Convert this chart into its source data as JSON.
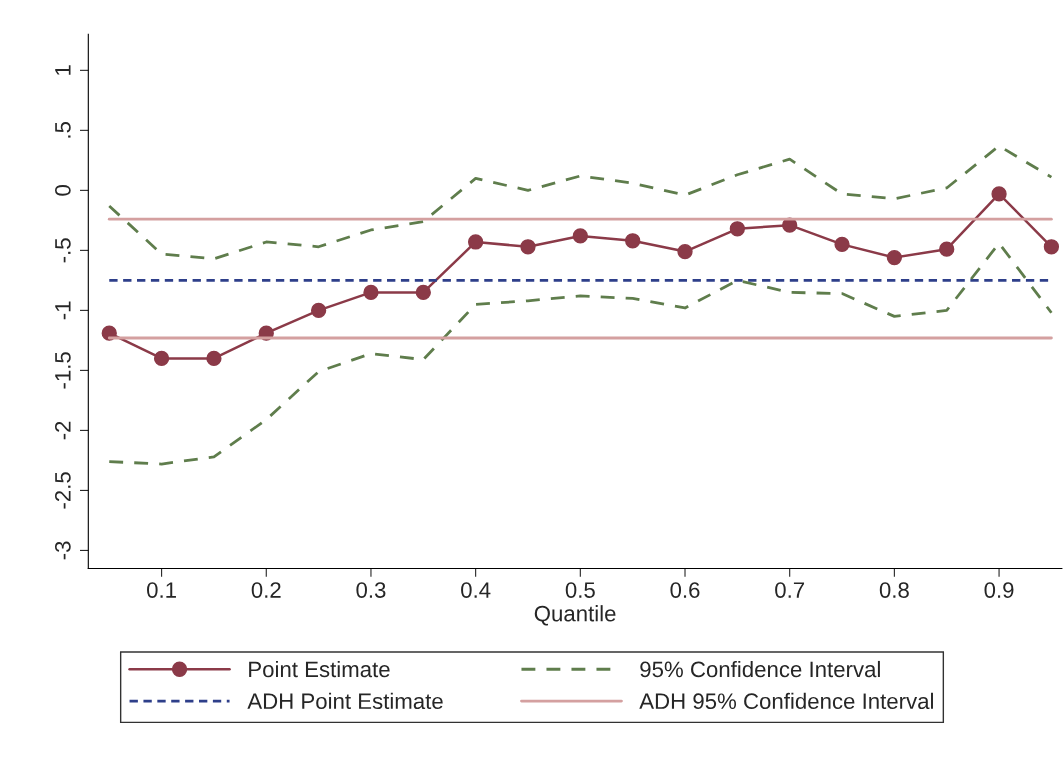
{
  "chart_data": {
    "type": "line",
    "xlabel": "Quantile",
    "x": [
      0.05,
      0.1,
      0.15,
      0.2,
      0.25,
      0.3,
      0.35,
      0.4,
      0.45,
      0.5,
      0.55,
      0.6,
      0.65,
      0.7,
      0.75,
      0.8,
      0.85,
      0.9,
      0.95
    ],
    "series": [
      {
        "name": "Point Estimate",
        "color": "#8b3a48",
        "marker": "circle",
        "line_style": "solid",
        "values": [
          -1.19,
          -1.4,
          -1.4,
          -1.19,
          -1.0,
          -0.85,
          -0.85,
          -0.43,
          -0.47,
          -0.38,
          -0.42,
          -0.51,
          -0.32,
          -0.29,
          -0.45,
          -0.56,
          -0.49,
          -0.03,
          -0.47
        ]
      },
      {
        "name": "95% Confidence Interval",
        "color": "#5f7d4c",
        "marker": "none",
        "line_style": "dashed",
        "values": [
          -0.13,
          -0.53,
          -0.57,
          -0.43,
          -0.47,
          -0.33,
          -0.26,
          0.1,
          0.0,
          0.12,
          0.06,
          -0.04,
          0.13,
          0.26,
          -0.03,
          -0.07,
          0.02,
          0.37,
          0.11
        ]
      },
      {
        "name": "ADH Point Estimate",
        "color": "#2e3f8a",
        "marker": "none",
        "line_style": "dotted",
        "values": [
          -0.75,
          -0.75,
          -0.75,
          -0.75,
          -0.75,
          -0.75,
          -0.75,
          -0.75,
          -0.75,
          -0.75,
          -0.75,
          -0.75,
          -0.75,
          -0.75,
          -0.75,
          -0.75,
          -0.75,
          -0.75,
          -0.75
        ]
      },
      {
        "name": "ADH 95% Confidence Interval",
        "color": "#d4a0a0",
        "marker": "none",
        "line_style": "solid",
        "values": [
          -0.24,
          -0.24,
          -0.24,
          -0.24,
          -0.24,
          -0.24,
          -0.24,
          -0.24,
          -0.24,
          -0.24,
          -0.24,
          -0.24,
          -0.24,
          -0.24,
          -0.24,
          -0.24,
          -0.24,
          -0.24,
          -0.24
        ]
      },
      {
        "color": "#5f7d4c",
        "marker": "none",
        "line_style": "dashed",
        "values": [
          -2.26,
          -2.28,
          -2.22,
          -1.91,
          -1.51,
          -1.36,
          -1.41,
          -0.95,
          -0.92,
          -0.88,
          -0.9,
          -0.98,
          -0.75,
          -0.85,
          -0.86,
          -1.05,
          -1.0,
          -0.44,
          -1.02
        ]
      },
      {
        "color": "#d4a0a0",
        "marker": "none",
        "line_style": "solid",
        "values": [
          -1.23,
          -1.23,
          -1.23,
          -1.23,
          -1.23,
          -1.23,
          -1.23,
          -1.23,
          -1.23,
          -1.23,
          -1.23,
          -1.23,
          -1.23,
          -1.23,
          -1.23,
          -1.23,
          -1.23,
          -1.23,
          -1.23
        ]
      }
    ],
    "xlim": [
      0.03,
      0.96
    ],
    "xticks": [
      0.1,
      0.2,
      0.3,
      0.4,
      0.5,
      0.6,
      0.7,
      0.8,
      0.9
    ],
    "ylim": [
      -3.15,
      1.3
    ],
    "yticks": [
      {
        "value": -3,
        "label": "-3"
      },
      {
        "value": -2.5,
        "label": "-2.5"
      },
      {
        "value": -2,
        "label": "-2"
      },
      {
        "value": -1.5,
        "label": "-1.5"
      },
      {
        "value": -1,
        "label": "-1"
      },
      {
        "value": -0.5,
        "label": "-.5"
      },
      {
        "value": 0,
        "label": "0"
      },
      {
        "value": 0.5,
        "label": ".5"
      },
      {
        "value": 1,
        "label": "1"
      }
    ],
    "legend": "bottom",
    "grid": false
  }
}
